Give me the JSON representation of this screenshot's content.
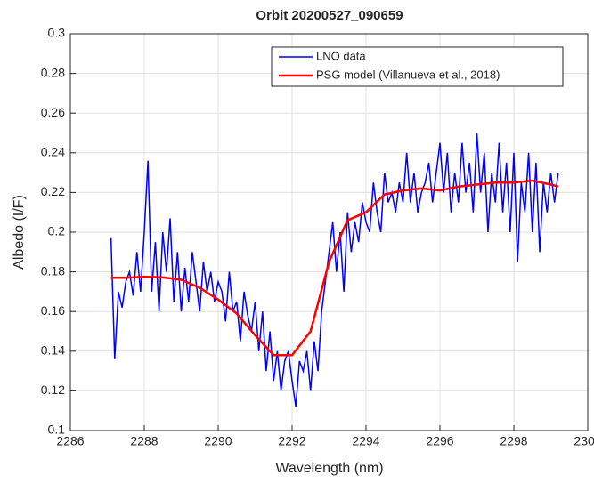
{
  "chart_data": {
    "type": "line",
    "title": "Orbit 20200527_090659",
    "x_label": "Wavelength (nm)",
    "y_label": "Albedo (I/F)",
    "xlim": [
      2286,
      2300
    ],
    "xticks": [
      2286,
      2288,
      2290,
      2292,
      2294,
      2296,
      2298,
      2300
    ],
    "ylim": [
      0.1,
      0.3
    ],
    "yticks": [
      0.1,
      0.12,
      0.14,
      0.16,
      0.18,
      0.2,
      0.22,
      0.24,
      0.26,
      0.28,
      0.3
    ],
    "grid": true,
    "legend": "upper right",
    "series": [
      {
        "name": "LNO data",
        "color": "#0000ff",
        "x": [
          2287.1,
          2287.2,
          2287.3,
          2287.4,
          2287.5,
          2287.6,
          2287.7,
          2287.8,
          2287.9,
          2288.0,
          2288.1,
          2288.2,
          2288.3,
          2288.4,
          2288.5,
          2288.6,
          2288.7,
          2288.8,
          2288.9,
          2289.0,
          2289.1,
          2289.2,
          2289.3,
          2289.4,
          2289.5,
          2289.6,
          2289.7,
          2289.8,
          2289.9,
          2290.0,
          2290.1,
          2290.2,
          2290.3,
          2290.4,
          2290.5,
          2290.6,
          2290.7,
          2290.8,
          2290.9,
          2291.0,
          2291.1,
          2291.2,
          2291.3,
          2291.4,
          2291.5,
          2291.6,
          2291.7,
          2291.8,
          2291.9,
          2292.0,
          2292.1,
          2292.2,
          2292.3,
          2292.4,
          2292.5,
          2292.6,
          2292.7,
          2292.8,
          2292.9,
          2293.0,
          2293.1,
          2293.2,
          2293.3,
          2293.4,
          2293.5,
          2293.6,
          2293.7,
          2293.8,
          2293.9,
          2294.0,
          2294.1,
          2294.2,
          2294.3,
          2294.4,
          2294.5,
          2294.6,
          2294.7,
          2294.8,
          2294.9,
          2295.0,
          2295.1,
          2295.2,
          2295.3,
          2295.4,
          2295.5,
          2295.6,
          2295.7,
          2295.8,
          2295.9,
          2296.0,
          2296.1,
          2296.2,
          2296.3,
          2296.4,
          2296.5,
          2296.6,
          2296.7,
          2296.8,
          2296.9,
          2297.0,
          2297.1,
          2297.2,
          2297.3,
          2297.4,
          2297.5,
          2297.6,
          2297.7,
          2297.8,
          2297.9,
          2298.0,
          2298.1,
          2298.2,
          2298.3,
          2298.4,
          2298.5,
          2298.6,
          2298.7,
          2298.8,
          2298.9,
          2299.0,
          2299.1,
          2299.2
        ],
        "values": [
          0.197,
          0.136,
          0.17,
          0.162,
          0.175,
          0.18,
          0.168,
          0.19,
          0.17,
          0.2,
          0.236,
          0.17,
          0.195,
          0.16,
          0.2,
          0.18,
          0.207,
          0.165,
          0.19,
          0.16,
          0.182,
          0.165,
          0.19,
          0.175,
          0.16,
          0.185,
          0.17,
          0.18,
          0.165,
          0.175,
          0.17,
          0.155,
          0.18,
          0.16,
          0.165,
          0.145,
          0.17,
          0.158,
          0.15,
          0.165,
          0.14,
          0.16,
          0.13,
          0.15,
          0.125,
          0.14,
          0.12,
          0.135,
          0.14,
          0.125,
          0.112,
          0.135,
          0.13,
          0.14,
          0.12,
          0.145,
          0.13,
          0.16,
          0.175,
          0.19,
          0.205,
          0.18,
          0.2,
          0.17,
          0.21,
          0.19,
          0.205,
          0.195,
          0.215,
          0.205,
          0.2,
          0.225,
          0.21,
          0.2,
          0.23,
          0.215,
          0.22,
          0.21,
          0.225,
          0.215,
          0.24,
          0.215,
          0.23,
          0.21,
          0.22,
          0.225,
          0.235,
          0.215,
          0.23,
          0.245,
          0.22,
          0.24,
          0.21,
          0.23,
          0.215,
          0.245,
          0.22,
          0.235,
          0.21,
          0.25,
          0.22,
          0.24,
          0.2,
          0.23,
          0.215,
          0.245,
          0.21,
          0.235,
          0.2,
          0.24,
          0.185,
          0.225,
          0.21,
          0.24,
          0.2,
          0.235,
          0.19,
          0.225,
          0.21,
          0.23,
          0.215,
          0.23
        ]
      },
      {
        "name": "PSG model (Villanueva et al., 2018)",
        "color": "#ff0000",
        "x": [
          2287.1,
          2287.5,
          2288.0,
          2288.5,
          2289.0,
          2289.5,
          2290.0,
          2290.5,
          2291.0,
          2291.5,
          2292.0,
          2292.5,
          2293.0,
          2293.5,
          2294.0,
          2294.5,
          2295.0,
          2295.5,
          2296.0,
          2296.5,
          2297.0,
          2297.5,
          2298.0,
          2298.5,
          2299.0,
          2299.2
        ],
        "values": [
          0.177,
          0.177,
          0.1775,
          0.1772,
          0.176,
          0.172,
          0.166,
          0.159,
          0.148,
          0.138,
          0.138,
          0.15,
          0.185,
          0.206,
          0.21,
          0.219,
          0.221,
          0.222,
          0.221,
          0.223,
          0.224,
          0.225,
          0.225,
          0.226,
          0.224,
          0.223
        ]
      }
    ]
  }
}
